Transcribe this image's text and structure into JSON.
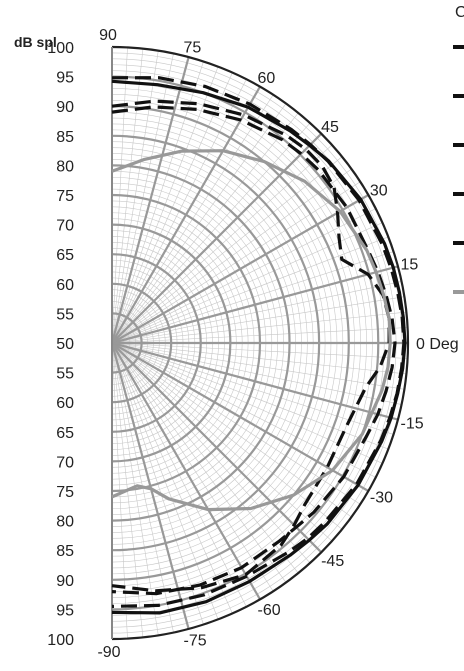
{
  "chart_data": {
    "type": "polar",
    "ylabel": "dB spl",
    "legend_title": "C",
    "radial_range": [
      50,
      100
    ],
    "radial_ticks_upper": [
      "100",
      "95",
      "90",
      "85",
      "80",
      "75",
      "70",
      "65",
      "60",
      "55",
      "50"
    ],
    "radial_ticks_lower": [
      "55",
      "60",
      "65",
      "70",
      "75",
      "80",
      "85",
      "90",
      "95",
      "100"
    ],
    "angle_range_deg": [
      -90,
      90
    ],
    "angle_ticks": [
      {
        "deg": 90,
        "label": "90"
      },
      {
        "deg": 75,
        "label": "75"
      },
      {
        "deg": 60,
        "label": "60"
      },
      {
        "deg": 45,
        "label": "45"
      },
      {
        "deg": 30,
        "label": "30"
      },
      {
        "deg": 15,
        "label": "15"
      },
      {
        "deg": 0,
        "label": "0 Deg"
      },
      {
        "deg": -15,
        "label": "-15"
      },
      {
        "deg": -30,
        "label": "-30"
      },
      {
        "deg": -45,
        "label": "-45"
      },
      {
        "deg": -60,
        "label": "-60"
      },
      {
        "deg": -75,
        "label": "-75"
      },
      {
        "deg": -90,
        "label": "-90"
      }
    ],
    "grid": true,
    "legend_position": "top-right",
    "series": [
      {
        "color": "#111111",
        "style": "solid",
        "width": 3.2,
        "angles": [
          90,
          80,
          70,
          60,
          50,
          45,
          40,
          30,
          20,
          15,
          10,
          5,
          0,
          -5,
          -10,
          -15,
          -20,
          -30,
          -40,
          -45,
          -50,
          -60,
          -70,
          -80,
          -90
        ],
        "values": [
          94.2,
          94.3,
          95.0,
          96.0,
          96.8,
          97.2,
          97.8,
          98.5,
          99.0,
          99.2,
          99.3,
          99.4,
          99.5,
          99.3,
          99.0,
          98.8,
          98.5,
          98.0,
          97.5,
          97.1,
          96.8,
          96.5,
          96.5,
          96.3,
          95.5
        ]
      },
      {
        "color": "#111111",
        "style": "dashed",
        "width": 3.2,
        "angles": [
          90,
          80,
          70,
          60,
          50,
          45,
          40,
          30,
          20,
          15,
          10,
          5,
          0,
          -5,
          -10,
          -15,
          -20,
          -30,
          -40,
          -45,
          -50,
          -60,
          -70,
          -80,
          -90
        ],
        "values": [
          94.8,
          95.5,
          96.1,
          96.6,
          97.1,
          97.4,
          97.7,
          98.2,
          98.6,
          98.8,
          99.0,
          99.2,
          99.3,
          99.1,
          98.9,
          98.6,
          98.3,
          97.7,
          97.0,
          96.7,
          96.2,
          95.5,
          95.3,
          95.0,
          94.5
        ]
      },
      {
        "color": "#111111",
        "style": "dashed",
        "width": 3.2,
        "angles": [
          90,
          80,
          70,
          60,
          50,
          45,
          40,
          35,
          30,
          25,
          20,
          15,
          10,
          5,
          0,
          -5,
          -10,
          -20,
          -30,
          -40,
          -45,
          -50,
          -60,
          -70,
          -80,
          -90
        ],
        "values": [
          90.0,
          91.5,
          93.0,
          94.5,
          95.8,
          96.3,
          96.4,
          95.8,
          94.0,
          92.3,
          91.3,
          94.8,
          96.5,
          97.0,
          96.8,
          95.5,
          93.5,
          92.0,
          92.0,
          92.5,
          93.5,
          94.5,
          95.2,
          94.0,
          92.5,
          91.0
        ]
      },
      {
        "color": "#111111",
        "style": "dashed",
        "width": 3.2,
        "angles": [
          90,
          80,
          70,
          60,
          50,
          45,
          40,
          30,
          20,
          15,
          10,
          5,
          0,
          -5,
          -10,
          -15,
          -20,
          -30,
          -40,
          -45,
          -50,
          -60,
          -70,
          -80,
          -90
        ],
        "values": [
          89.0,
          90.5,
          92.0,
          93.5,
          94.8,
          95.2,
          95.5,
          95.8,
          96.0,
          96.5,
          97.0,
          97.5,
          97.8,
          97.5,
          97.0,
          96.5,
          95.8,
          95.2,
          94.5,
          94.0,
          93.8,
          93.8,
          93.5,
          93.0,
          92.0
        ]
      },
      {
        "color": "#999999",
        "style": "solid",
        "width": 3.2,
        "angles": [
          90,
          80,
          70,
          60,
          50,
          40,
          30,
          20,
          15,
          10,
          5,
          0,
          -5,
          -10,
          -20,
          -30,
          -40,
          -50,
          -60,
          -70,
          -75,
          -80,
          -90
        ],
        "values": [
          79.0,
          81.5,
          84.5,
          87.5,
          90.0,
          92.5,
          94.5,
          95.8,
          96.2,
          96.6,
          97.0,
          97.0,
          96.8,
          96.3,
          95.0,
          93.0,
          90.0,
          86.5,
          82.5,
          78.0,
          75.5,
          74.5,
          76.0
        ]
      }
    ],
    "legend": [
      {
        "color": "#111111",
        "style": "solid"
      },
      {
        "color": "#111111",
        "style": "solid"
      },
      {
        "color": "#111111",
        "style": "solid"
      },
      {
        "color": "#111111",
        "style": "solid"
      },
      {
        "color": "#111111",
        "style": "solid"
      },
      {
        "color": "#999999",
        "style": "solid"
      }
    ]
  }
}
